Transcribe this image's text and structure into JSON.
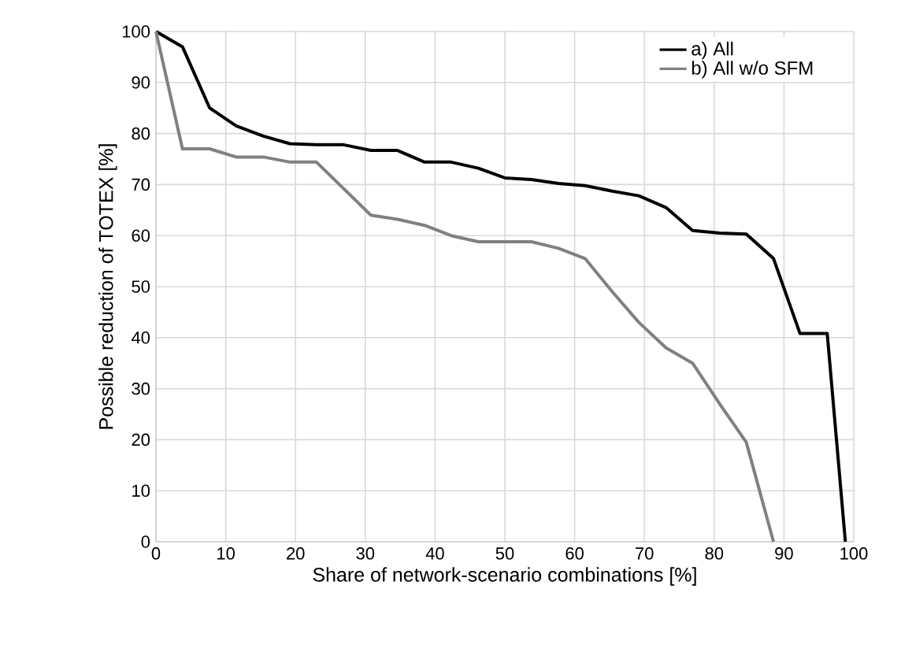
{
  "chart_data": {
    "type": "line",
    "xlabel": "Share of network-scenario combinations [%]",
    "ylabel": "Possible reduction of TOTEX [%]",
    "xlim": [
      0,
      100
    ],
    "ylim": [
      0,
      100
    ],
    "xticks": [
      0,
      10,
      20,
      30,
      40,
      50,
      60,
      70,
      80,
      90,
      100
    ],
    "yticks": [
      0,
      10,
      20,
      30,
      40,
      50,
      60,
      70,
      80,
      90,
      100
    ],
    "grid": true,
    "legend": "top right",
    "line_style": "solid",
    "marker": "none",
    "series": [
      {
        "name": "a) All",
        "color": "#000000",
        "x": [
          0,
          3.8,
          7.7,
          11.5,
          15.4,
          19.2,
          23,
          26.9,
          30.8,
          34.6,
          38.5,
          42.3,
          46.2,
          50,
          53.8,
          57.7,
          61.5,
          65.4,
          69.2,
          73.1,
          76.9,
          80.8,
          84.6,
          88.5,
          92.3,
          96.2,
          98.8
        ],
        "values": [
          100,
          97,
          85,
          81.5,
          79.5,
          78,
          77.8,
          77.8,
          76.7,
          76.7,
          74.4,
          74.4,
          73.2,
          71.3,
          71,
          70.2,
          69.8,
          68.7,
          67.8,
          65.5,
          61,
          60.5,
          60.3,
          55.5,
          40.8,
          40.8,
          0
        ]
      },
      {
        "name": "b) All w/o SFM",
        "color": "#808080",
        "x": [
          0,
          3.8,
          7.7,
          11.5,
          15.4,
          19.2,
          23,
          30.8,
          34.6,
          38.5,
          42.3,
          46.2,
          50,
          53.8,
          57.7,
          61.5,
          65.4,
          69.2,
          73.1,
          76.9,
          80.8,
          84.6,
          88.5
        ],
        "values": [
          100,
          77,
          77,
          75.4,
          75.4,
          74.4,
          74.4,
          64,
          63.2,
          62,
          60,
          58.8,
          58.8,
          58.8,
          57.5,
          55.5,
          49,
          43,
          38,
          35,
          27,
          19.5,
          0
        ]
      }
    ]
  }
}
